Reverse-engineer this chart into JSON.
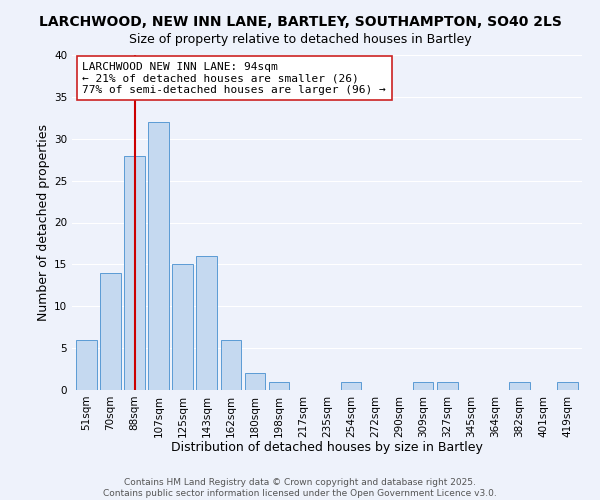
{
  "title": "LARCHWOOD, NEW INN LANE, BARTLEY, SOUTHAMPTON, SO40 2LS",
  "subtitle": "Size of property relative to detached houses in Bartley",
  "xlabel": "Distribution of detached houses by size in Bartley",
  "ylabel": "Number of detached properties",
  "bar_labels": [
    "51sqm",
    "70sqm",
    "88sqm",
    "107sqm",
    "125sqm",
    "143sqm",
    "162sqm",
    "180sqm",
    "198sqm",
    "217sqm",
    "235sqm",
    "254sqm",
    "272sqm",
    "290sqm",
    "309sqm",
    "327sqm",
    "345sqm",
    "364sqm",
    "382sqm",
    "401sqm",
    "419sqm"
  ],
  "bar_values": [
    6,
    14,
    28,
    32,
    15,
    16,
    6,
    2,
    1,
    0,
    0,
    1,
    0,
    0,
    1,
    1,
    0,
    0,
    1,
    0,
    1
  ],
  "bar_color": "#c5d9f0",
  "bar_edge_color": "#5b9bd5",
  "vline_x": 2,
  "vline_color": "#cc0000",
  "ylim": [
    0,
    40
  ],
  "yticks": [
    0,
    5,
    10,
    15,
    20,
    25,
    30,
    35,
    40
  ],
  "annotation_title": "LARCHWOOD NEW INN LANE: 94sqm",
  "annotation_line1": "← 21% of detached houses are smaller (26)",
  "annotation_line2": "77% of semi-detached houses are larger (96) →",
  "footer1": "Contains HM Land Registry data © Crown copyright and database right 2025.",
  "footer2": "Contains public sector information licensed under the Open Government Licence v3.0.",
  "bg_color": "#eef2fb",
  "grid_color": "#ffffff",
  "title_fontsize": 10,
  "subtitle_fontsize": 9,
  "axis_label_fontsize": 9,
  "tick_fontsize": 7.5,
  "annotation_fontsize": 8,
  "footer_fontsize": 6.5
}
